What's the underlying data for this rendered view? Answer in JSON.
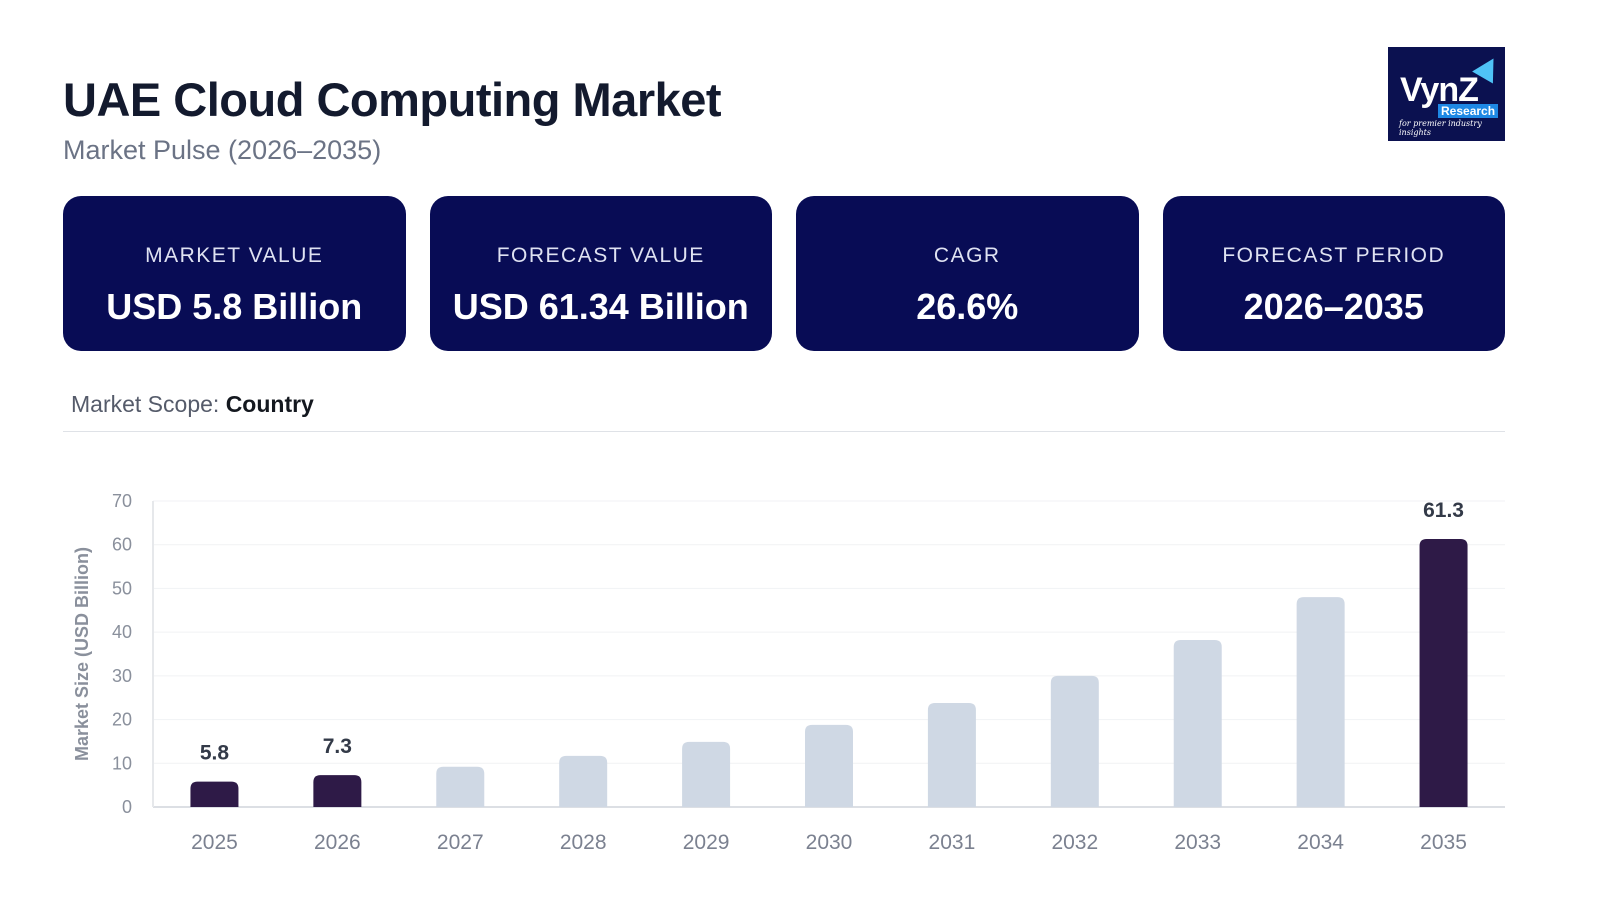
{
  "header": {
    "title": "UAE Cloud Computing Market",
    "subtitle": "Market Pulse (2026–2035)"
  },
  "logo": {
    "text": "VynZ Research",
    "tagline": "for premier industry insights"
  },
  "cards": [
    {
      "label": "MARKET VALUE",
      "value": "USD 5.8 Billion"
    },
    {
      "label": "FORECAST VALUE",
      "value": "USD 61.34 Billion"
    },
    {
      "label": "CAGR",
      "value": "26.6%"
    },
    {
      "label": "FORECAST PERIOD",
      "value": "2026–2035"
    }
  ],
  "scope": {
    "label": "Market Scope:",
    "value": "Country"
  },
  "colors": {
    "card_bg": "#080c55",
    "highlight_bar": "#2e1a47",
    "bar": "#cfd8e4"
  },
  "chart_data": {
    "type": "bar",
    "categories": [
      "2025",
      "2026",
      "2027",
      "2028",
      "2029",
      "2030",
      "2031",
      "2032",
      "2033",
      "2034",
      "2035"
    ],
    "values": [
      5.8,
      7.3,
      9.2,
      11.7,
      14.9,
      18.8,
      23.8,
      30.0,
      38.2,
      48.0,
      61.3
    ],
    "highlighted": [
      "2025",
      "2026",
      "2035"
    ],
    "data_labels": {
      "2025": "5.8",
      "2026": "7.3",
      "2035": "61.3"
    },
    "ylabel": "Market Size (USD Billion)",
    "xlabel": "",
    "ylim": [
      0,
      70
    ],
    "yticks": [
      0,
      10,
      20,
      30,
      40,
      50,
      60,
      70
    ],
    "grid": true,
    "legend": "none"
  }
}
